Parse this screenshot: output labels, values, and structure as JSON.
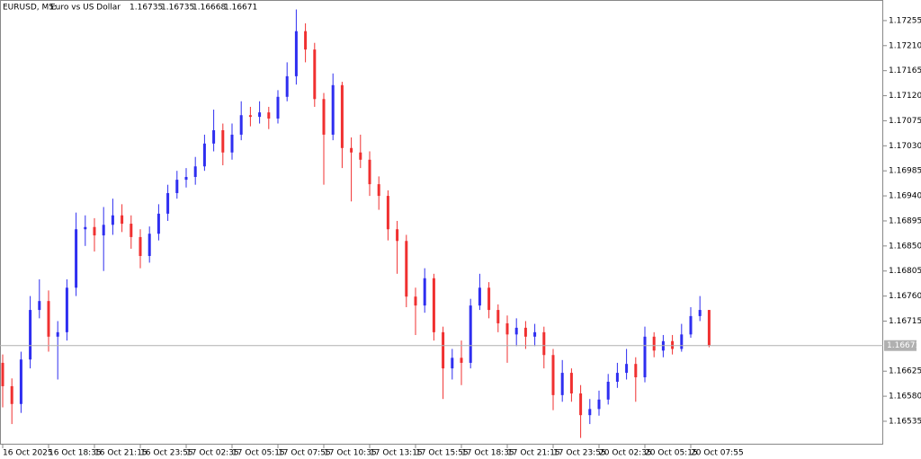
{
  "chart_data": {
    "type": "candlestick",
    "symbol": "EURUSD, M5:",
    "description": "Euro vs US Dollar",
    "categories": [
      "16 Oct 2025",
      null,
      null,
      null,
      null,
      "16 Oct 18:35",
      null,
      null,
      null,
      null,
      "16 Oct 21:15",
      null,
      null,
      null,
      null,
      "16 Oct 23:55",
      null,
      null,
      null,
      null,
      "17 Oct 02:35",
      null,
      null,
      null,
      null,
      "17 Oct 05:15",
      null,
      null,
      null,
      null,
      "17 Oct 07:55",
      null,
      null,
      null,
      null,
      "17 Oct 10:35",
      null,
      null,
      null,
      null,
      "17 Oct 13:15",
      null,
      null,
      null,
      null,
      "17 Oct 15:55",
      null,
      null,
      null,
      null,
      "17 Oct 18:35",
      null,
      null,
      null,
      null,
      "17 Oct 21:15",
      null,
      null,
      null,
      null,
      "17 Oct 23:55",
      null,
      null,
      null,
      null,
      "20 Oct 02:35",
      null,
      null,
      null,
      null,
      "20 Oct 05:15",
      null,
      null,
      null,
      null,
      "20 Oct 07:55",
      null,
      null
    ],
    "open": [
      1.1664,
      1.16598,
      1.16566,
      1.16646,
      1.16735,
      1.16751,
      1.16687,
      1.16695,
      1.16775,
      1.1688,
      1.16884,
      1.16869,
      1.16888,
      1.16905,
      1.1689,
      1.16866,
      1.16832,
      1.16872,
      1.16908,
      1.16945,
      1.16969,
      1.16974,
      1.16993,
      1.17034,
      1.17058,
      1.17018,
      1.1705,
      1.17085,
      1.17082,
      1.1709,
      1.17079,
      1.17118,
      1.17155,
      1.17236,
      1.17203,
      1.17114,
      1.1705,
      1.17139,
      1.17026,
      1.17018,
      1.17005,
      1.16961,
      1.1694,
      1.1688,
      1.16859,
      1.16759,
      1.16743,
      1.16792,
      1.16695,
      1.1663,
      1.16649,
      1.1664,
      1.16743,
      1.16775,
      1.16735,
      1.16711,
      1.16691,
      1.16703,
      1.16687,
      1.16695,
      1.16654,
      1.16582,
      1.16622,
      1.16585,
      1.16546,
      1.16557,
      1.16574,
      1.16606,
      1.16622,
      1.16638,
      1.16614,
      1.16687,
      1.16662,
      1.16679,
      1.16665,
      1.16691,
      1.16724,
      1.16735
    ],
    "high": [
      1.16655,
      1.16612,
      1.1666,
      1.1676,
      1.1679,
      1.1677,
      1.16715,
      1.1679,
      1.1691,
      1.16905,
      1.169,
      1.1692,
      1.16935,
      1.16925,
      1.16905,
      1.1688,
      1.16885,
      1.16925,
      1.1696,
      1.16985,
      1.1699,
      1.1701,
      1.1705,
      1.17095,
      1.1707,
      1.1707,
      1.1711,
      1.171,
      1.1711,
      1.171,
      1.1713,
      1.1718,
      1.17275,
      1.1725,
      1.17215,
      1.17125,
      1.1716,
      1.17145,
      1.17045,
      1.1705,
      1.1702,
      1.16975,
      1.1695,
      1.16895,
      1.1687,
      1.16775,
      1.1681,
      1.168,
      1.16705,
      1.16665,
      1.1668,
      1.16755,
      1.168,
      1.16785,
      1.16745,
      1.16725,
      1.1672,
      1.16715,
      1.1671,
      1.16705,
      1.16665,
      1.16645,
      1.1663,
      1.166,
      1.16575,
      1.1659,
      1.1662,
      1.1664,
      1.16665,
      1.1665,
      1.16705,
      1.16695,
      1.1669,
      1.1669,
      1.1671,
      1.1674,
      1.1676,
      1.16735
    ],
    "low": [
      1.1656,
      1.1653,
      1.1655,
      1.1663,
      1.1672,
      1.1666,
      1.1661,
      1.1668,
      1.1676,
      1.1685,
      1.1684,
      1.16805,
      1.1687,
      1.16875,
      1.16845,
      1.1681,
      1.1682,
      1.1686,
      1.16895,
      1.16935,
      1.16955,
      1.1696,
      1.16985,
      1.1702,
      1.16995,
      1.17005,
      1.1704,
      1.17065,
      1.1707,
      1.1706,
      1.1707,
      1.1711,
      1.1714,
      1.1718,
      1.171,
      1.1696,
      1.1704,
      1.1699,
      1.1693,
      1.1699,
      1.1694,
      1.16915,
      1.1686,
      1.168,
      1.1674,
      1.1669,
      1.1673,
      1.1668,
      1.16575,
      1.1661,
      1.166,
      1.1663,
      1.16735,
      1.1672,
      1.16695,
      1.1664,
      1.1667,
      1.16665,
      1.1667,
      1.1663,
      1.16555,
      1.1657,
      1.1657,
      1.16505,
      1.1653,
      1.16545,
      1.16565,
      1.16595,
      1.1661,
      1.1657,
      1.16605,
      1.1665,
      1.1665,
      1.16655,
      1.1666,
      1.16685,
      1.16715,
      1.16668
    ],
    "close": [
      1.16598,
      1.16566,
      1.16646,
      1.16735,
      1.16751,
      1.16687,
      1.16695,
      1.16775,
      1.1688,
      1.16884,
      1.16869,
      1.16888,
      1.16905,
      1.1689,
      1.16866,
      1.16832,
      1.16872,
      1.16908,
      1.16945,
      1.16969,
      1.16974,
      1.16993,
      1.17034,
      1.17058,
      1.17018,
      1.1705,
      1.17085,
      1.17082,
      1.1709,
      1.17079,
      1.17118,
      1.17155,
      1.17236,
      1.17203,
      1.17114,
      1.1705,
      1.17139,
      1.17026,
      1.17018,
      1.17005,
      1.16961,
      1.1694,
      1.1688,
      1.16859,
      1.16759,
      1.16743,
      1.16792,
      1.16695,
      1.1663,
      1.16649,
      1.1664,
      1.16743,
      1.16775,
      1.16735,
      1.16711,
      1.16691,
      1.16703,
      1.16687,
      1.16695,
      1.16654,
      1.16582,
      1.16622,
      1.16585,
      1.16546,
      1.16557,
      1.16574,
      1.16606,
      1.16622,
      1.16638,
      1.16614,
      1.16687,
      1.16662,
      1.16679,
      1.16665,
      1.16691,
      1.16724,
      1.16735,
      1.16671
    ],
    "up_color": "#2e2ef0",
    "down_color": "#f03030",
    "ylim": [
      1.16493,
      1.17292
    ],
    "yticks": [
      1.17255,
      {
        "value": 1.1721,
        "label": "1.17210"
      },
      1.17165,
      {
        "value": 1.1712,
        "label": "1.17120"
      },
      1.17075,
      {
        "value": 1.1703,
        "label": "1.17030"
      },
      1.16985,
      {
        "value": 1.1694,
        "label": "1.16940"
      },
      1.16895,
      {
        "value": 1.1685,
        "label": "1.16850"
      },
      1.16805,
      {
        "value": 1.1676,
        "label": "1.16760"
      },
      1.16715,
      1.16625,
      {
        "value": 1.1658,
        "label": "1.16580"
      },
      1.16535
    ],
    "grid": false
  }
}
